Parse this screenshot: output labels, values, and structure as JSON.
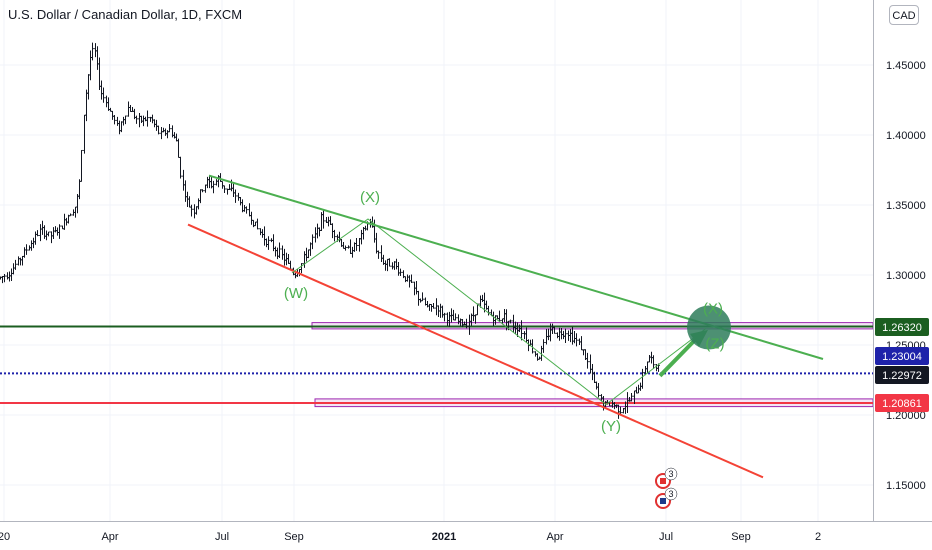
{
  "header": {
    "title": "U.S. Dollar / Canadian Dollar, 1D, FXCM",
    "currency_button": "CAD"
  },
  "colors": {
    "candle": "#131722",
    "green_trend": "#4caf50",
    "red_trend": "#f44336",
    "dark_green_level": "#1b5e20",
    "blue_level": "#1e22aa",
    "red_level": "#f23645",
    "zone_border": "#9c27b0",
    "zone_fill": "#f3e5f5",
    "wave_label": "#4caf50",
    "target_circle": "#2e7d5b"
  },
  "chart_data": {
    "type": "candlestick",
    "symbol": "U.S. Dollar / Canadian Dollar",
    "timeframe": "1D",
    "source": "FXCM",
    "y_axis": {
      "range": [
        1.1285,
        1.492
      ],
      "ticks": [
        "1.45000",
        "1.40000",
        "1.35000",
        "1.30000",
        "1.25000",
        "1.20000",
        "1.15000"
      ]
    },
    "x_axis": {
      "ticks": [
        "20",
        "Apr",
        "Jul",
        "Sep",
        "2021",
        "Apr",
        "Jul",
        "Sep",
        "2"
      ]
    },
    "price_path": [
      [
        0,
        1.298
      ],
      [
        10,
        1.302
      ],
      [
        20,
        1.312
      ],
      [
        30,
        1.322
      ],
      [
        40,
        1.332
      ],
      [
        50,
        1.328
      ],
      [
        60,
        1.333
      ],
      [
        70,
        1.345
      ],
      [
        76,
        1.35
      ],
      [
        80,
        1.37
      ],
      [
        84,
        1.42
      ],
      [
        90,
        1.455
      ],
      [
        94,
        1.462
      ],
      [
        100,
        1.432
      ],
      [
        108,
        1.42
      ],
      [
        118,
        1.404
      ],
      [
        128,
        1.42
      ],
      [
        138,
        1.41
      ],
      [
        150,
        1.412
      ],
      [
        160,
        1.4
      ],
      [
        170,
        1.404
      ],
      [
        176,
        1.395
      ],
      [
        182,
        1.365
      ],
      [
        188,
        1.35
      ],
      [
        194,
        1.346
      ],
      [
        200,
        1.358
      ],
      [
        206,
        1.367
      ],
      [
        212,
        1.364
      ],
      [
        218,
        1.369
      ],
      [
        226,
        1.361
      ],
      [
        234,
        1.359
      ],
      [
        242,
        1.348
      ],
      [
        250,
        1.342
      ],
      [
        258,
        1.332
      ],
      [
        266,
        1.325
      ],
      [
        276,
        1.318
      ],
      [
        286,
        1.31
      ],
      [
        294,
        1.3
      ],
      [
        300,
        1.306
      ],
      [
        308,
        1.318
      ],
      [
        316,
        1.33
      ],
      [
        322,
        1.341
      ],
      [
        330,
        1.336
      ],
      [
        338,
        1.326
      ],
      [
        346,
        1.317
      ],
      [
        356,
        1.321
      ],
      [
        364,
        1.332
      ],
      [
        370,
        1.339
      ],
      [
        376,
        1.319
      ],
      [
        384,
        1.308
      ],
      [
        392,
        1.309
      ],
      [
        400,
        1.302
      ],
      [
        410,
        1.294
      ],
      [
        418,
        1.284
      ],
      [
        428,
        1.276
      ],
      [
        436,
        1.278
      ],
      [
        446,
        1.27
      ],
      [
        456,
        1.267
      ],
      [
        464,
        1.265
      ],
      [
        472,
        1.27
      ],
      [
        480,
        1.282
      ],
      [
        488,
        1.273
      ],
      [
        496,
        1.268
      ],
      [
        504,
        1.271
      ],
      [
        512,
        1.264
      ],
      [
        520,
        1.262
      ],
      [
        526,
        1.255
      ],
      [
        532,
        1.247
      ],
      [
        538,
        1.24
      ],
      [
        544,
        1.251
      ],
      [
        550,
        1.262
      ],
      [
        558,
        1.258
      ],
      [
        566,
        1.26
      ],
      [
        572,
        1.256
      ],
      [
        580,
        1.25
      ],
      [
        586,
        1.24
      ],
      [
        592,
        1.227
      ],
      [
        598,
        1.214
      ],
      [
        604,
        1.207
      ],
      [
        612,
        1.208
      ],
      [
        620,
        1.204
      ],
      [
        628,
        1.209
      ],
      [
        634,
        1.215
      ],
      [
        640,
        1.222
      ],
      [
        646,
        1.238
      ],
      [
        650,
        1.243
      ],
      [
        654,
        1.232
      ],
      [
        660,
        1.24
      ]
    ],
    "annotations": {
      "green_trendline": {
        "from": [
          209,
          1.371
        ],
        "to": [
          823,
          1.24
        ]
      },
      "red_trendline": {
        "from": [
          188,
          1.336
        ],
        "to": [
          763,
          1.1555
        ]
      },
      "wave_path": [
        [
          292,
          1.3015
        ],
        [
          368,
          1.34
        ],
        [
          606,
          1.2075
        ],
        [
          706,
          1.2618
        ]
      ],
      "target_arrow": {
        "from": [
          660,
          1.228
        ],
        "to": [
          708,
          1.2608
        ]
      },
      "target_circle": {
        "center": [
          709,
          1.2625
        ]
      },
      "horizontal_levels": [
        {
          "name": "green",
          "price": 1.2632
        },
        {
          "name": "blue",
          "price": 1.22972
        },
        {
          "name": "red",
          "price": 1.20861
        }
      ],
      "zones": [
        {
          "x_start": 312,
          "top": 1.266,
          "bottom": 1.2615
        },
        {
          "x_start": 315,
          "top": 1.2115,
          "bottom": 1.206
        }
      ],
      "wave_labels": [
        {
          "text": "(X)",
          "x": 370,
          "price": 1.352
        },
        {
          "text": "(W)",
          "x": 296,
          "price": 1.2835
        },
        {
          "text": "(Y)",
          "x": 611,
          "price": 1.1885
        },
        {
          "text": "(X)",
          "x": 713,
          "price": 1.2725
        },
        {
          "text": "(Z)",
          "x": 715,
          "price": 1.2475
        }
      ]
    },
    "price_labels": [
      {
        "text": "1.26320",
        "price": 1.2632,
        "bg": "#1b5e20",
        "fg": "#ffffff"
      },
      {
        "text": "1.23004",
        "price": 1.23004,
        "bg": "#1e22aa",
        "fg": "#ffffff"
      },
      {
        "text": "1.22972",
        "price": 1.22972,
        "bg": "#131722",
        "fg": "#ffffff"
      },
      {
        "text": "1.20861",
        "price": 1.20861,
        "bg": "#f23645",
        "fg": "#ffffff"
      }
    ],
    "event_badges": [
      {
        "text": "3",
        "flag": "CA"
      },
      {
        "text": "3",
        "flag": "US"
      }
    ]
  }
}
